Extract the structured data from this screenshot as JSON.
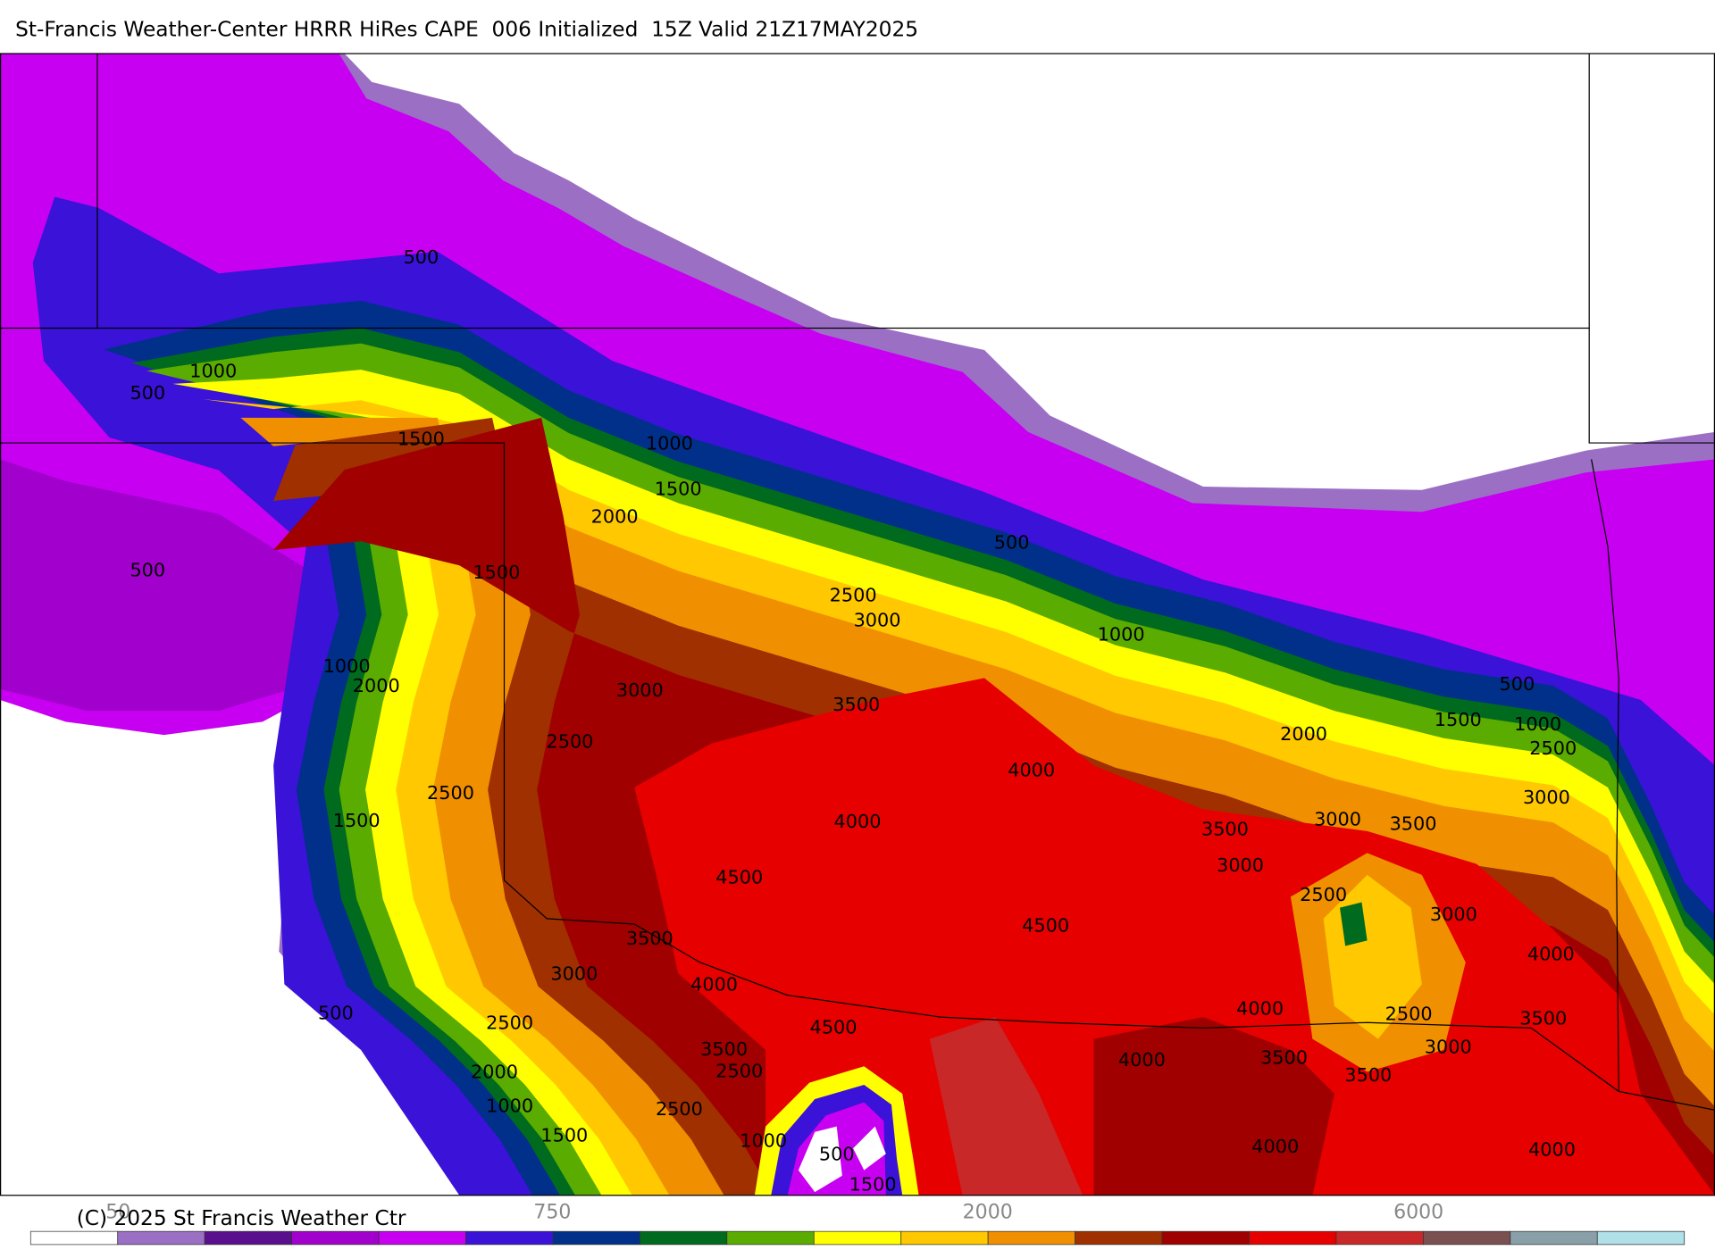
{
  "header": {
    "title": "St-Francis Weather-Center HRRR HiRes CAPE  006 Initialized  15Z Valid 21Z17MAY2025"
  },
  "map": {
    "contour_labels": [
      "500",
      "1000",
      "500",
      "1500",
      "1000",
      "1500",
      "2000",
      "500",
      "1500",
      "500",
      "2500",
      "3000",
      "1000",
      "1000",
      "2000",
      "3000",
      "3500",
      "500",
      "1500",
      "1000",
      "2000",
      "2500",
      "2500",
      "4000",
      "2500",
      "3000",
      "3500",
      "3000",
      "1500",
      "4000",
      "3500",
      "3000",
      "4500",
      "2500",
      "3000",
      "4500",
      "3500",
      "4000",
      "3000",
      "4000",
      "500",
      "4000",
      "2500",
      "2500",
      "4500",
      "3500",
      "3500",
      "3000",
      "4000",
      "3500",
      "2500",
      "2000",
      "3500",
      "1000",
      "2500",
      "1500",
      "1000",
      "4000",
      "4000",
      "500",
      "1500"
    ]
  },
  "colorbar": {
    "labels": [
      "50",
      "750",
      "2000",
      "6000"
    ],
    "colors": [
      "#ffffff",
      "#9b70c4",
      "#5a0f8f",
      "#a200cc",
      "#c800f2",
      "#3a12d8",
      "#00308a",
      "#006b1e",
      "#5aac00",
      "#ffff00",
      "#ffc800",
      "#f09000",
      "#a03000",
      "#a00000",
      "#e60000",
      "#c82828",
      "#7a5050",
      "#8aa0a8",
      "#b0e0e8"
    ]
  },
  "footer": {
    "copyright": "(C) 2025 St Francis Weather Ctr"
  }
}
